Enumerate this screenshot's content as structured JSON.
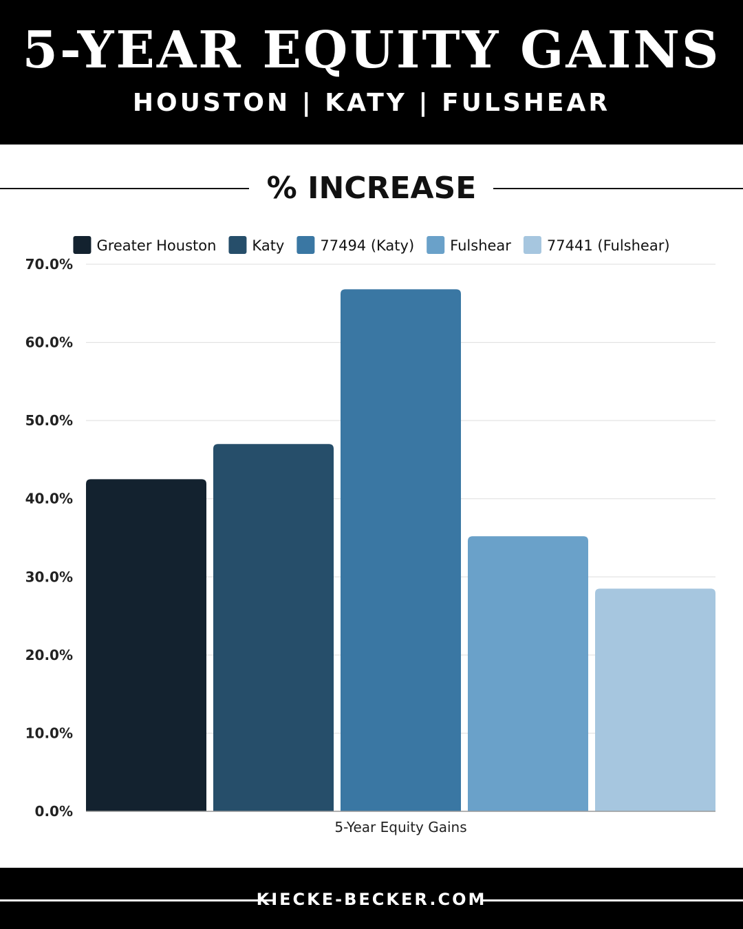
{
  "header": {
    "title": "5-YEAR EQUITY GAINS",
    "subtitle": "HOUSTON  |  KATY  |  FULSHEAR"
  },
  "section": {
    "title": "% INCREASE"
  },
  "footer": {
    "site": "KIECKE-BECKER.COM"
  },
  "chart_data": {
    "type": "bar",
    "categories": [
      "5-Year Equity Gains"
    ],
    "xlabel": "5-Year Equity Gains",
    "ylabel": "",
    "ylim": [
      0,
      70
    ],
    "yticks": [
      "0.0%",
      "10.0%",
      "20.0%",
      "30.0%",
      "40.0%",
      "50.0%",
      "60.0%",
      "70.0%"
    ],
    "grid": true,
    "legend_position": "top",
    "series": [
      {
        "name": "Greater Houston",
        "values": [
          42.5
        ],
        "color": "#13222f"
      },
      {
        "name": "Katy",
        "values": [
          47.0
        ],
        "color": "#264e6a"
      },
      {
        "name": "77494 (Katy)",
        "values": [
          66.8
        ],
        "color": "#3a77a3"
      },
      {
        "name": "Fulshear",
        "values": [
          35.2
        ],
        "color": "#6aa1c9"
      },
      {
        "name": "77441 (Fulshear)",
        "values": [
          28.5
        ],
        "color": "#a6c6df"
      }
    ]
  }
}
